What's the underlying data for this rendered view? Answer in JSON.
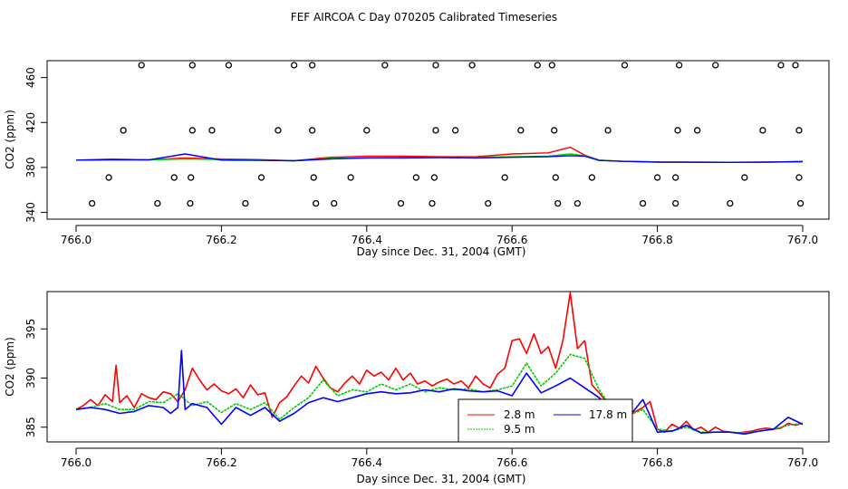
{
  "title": "FEF AIRCOA C  Day 070205  Calibrated Timeseries",
  "colors": {
    "red": "#ff0000",
    "green": "#00cc00",
    "blue": "#0000ff",
    "axis": "#000000"
  },
  "chart_data": [
    {
      "type": "scatter+line",
      "xlabel": "Day since Dec. 31, 2004 (GMT)",
      "ylabel": "CO2 (ppm)",
      "xlim": [
        766.0,
        767.0
      ],
      "ylim": [
        334,
        475
      ],
      "xticks": [
        766.0,
        766.2,
        766.4,
        766.6,
        766.8,
        767.0
      ],
      "xtick_labels": [
        "766.0",
        "766.2",
        "766.4",
        "766.6",
        "766.8",
        "767.0"
      ],
      "yticks": [
        340,
        380,
        420,
        460
      ],
      "ytick_labels": [
        "340",
        "380",
        "420",
        "460"
      ],
      "points_x": [
        766.09,
        766.16,
        766.21,
        766.3,
        766.325,
        766.425,
        766.495,
        766.545,
        766.635,
        766.655,
        766.755,
        766.83,
        766.88,
        766.97,
        766.99,
        766.065,
        766.16,
        766.187,
        766.278,
        766.325,
        766.4,
        766.495,
        766.522,
        766.612,
        766.658,
        766.732,
        766.828,
        766.855,
        766.945,
        766.995,
        766.045,
        766.135,
        766.158,
        766.255,
        766.327,
        766.378,
        766.468,
        766.493,
        766.59,
        766.66,
        766.71,
        766.8,
        766.825,
        766.92,
        766.995,
        766.022,
        766.112,
        766.157,
        766.233,
        766.33,
        766.355,
        766.447,
        766.49,
        766.567,
        766.663,
        766.69,
        766.78,
        766.825,
        766.9,
        766.997
      ],
      "points_y": [
        471,
        471,
        471,
        471,
        471,
        471,
        471,
        471,
        471,
        471,
        471,
        471,
        471,
        471,
        471,
        413,
        413,
        413,
        413,
        413,
        413,
        413,
        413,
        413,
        413,
        413,
        413,
        413,
        413,
        413,
        371,
        371,
        371,
        371,
        371,
        371,
        371,
        371,
        371,
        371,
        371,
        371,
        371,
        371,
        371,
        348,
        348,
        348,
        348,
        348,
        348,
        348,
        348,
        348,
        348,
        348,
        348,
        348,
        348,
        348
      ],
      "series": [
        {
          "name": "2.8 m",
          "color": "#ff0000",
          "x": [
            766.0,
            766.05,
            766.1,
            766.15,
            766.2,
            766.25,
            766.3,
            766.35,
            766.4,
            766.45,
            766.5,
            766.55,
            766.6,
            766.65,
            766.68,
            766.7,
            766.72,
            766.75,
            766.8,
            766.85,
            766.9,
            766.95,
            767.0
          ],
          "y": [
            386.5,
            387.5,
            386.8,
            388.5,
            387.5,
            387,
            386,
            389,
            390,
            390,
            389.5,
            389.5,
            392,
            393,
            398,
            391,
            386.5,
            385.5,
            385,
            384.8,
            384.6,
            384.8,
            385.3
          ]
        },
        {
          "name": "9.5 m",
          "color": "#00cc00",
          "x": [
            766.0,
            766.05,
            766.1,
            766.15,
            766.2,
            766.25,
            766.3,
            766.35,
            766.4,
            766.45,
            766.5,
            766.55,
            766.6,
            766.65,
            766.68,
            766.7,
            766.72,
            766.75,
            766.8,
            766.85,
            766.9,
            766.95,
            767.0
          ],
          "y": [
            386.5,
            387,
            386.8,
            387.5,
            387,
            386.5,
            386,
            388,
            388.5,
            389,
            389,
            389,
            389.5,
            390,
            392,
            390.5,
            386.5,
            385.5,
            384.8,
            384.7,
            384.6,
            384.7,
            385.2
          ]
        },
        {
          "name": "17.8 m",
          "color": "#0000ff",
          "x": [
            766.0,
            766.05,
            766.1,
            766.15,
            766.2,
            766.25,
            766.3,
            766.35,
            766.4,
            766.45,
            766.5,
            766.55,
            766.6,
            766.65,
            766.68,
            766.7,
            766.72,
            766.75,
            766.8,
            766.85,
            766.9,
            766.95,
            767.0
          ],
          "y": [
            386.5,
            386.8,
            386.7,
            392,
            386.5,
            386.3,
            386,
            387.5,
            388.5,
            388.5,
            388.8,
            388.5,
            389,
            389.5,
            390.5,
            390,
            386.2,
            385.5,
            384.7,
            384.6,
            384.5,
            384.7,
            385.2
          ]
        }
      ]
    },
    {
      "type": "line",
      "xlabel": "Day since Dec. 31, 2004 (GMT)",
      "ylabel": "CO2 (ppm)",
      "xlim": [
        766.0,
        767.0
      ],
      "ylim": [
        383.5,
        398.8
      ],
      "xticks": [
        766.0,
        766.2,
        766.4,
        766.6,
        766.8,
        767.0
      ],
      "xtick_labels": [
        "766.0",
        "766.2",
        "766.4",
        "766.6",
        "766.8",
        "767.0"
      ],
      "yticks": [
        385,
        390,
        395
      ],
      "ytick_labels": [
        "385",
        "390",
        "395"
      ],
      "legend": {
        "position": "bottom-right",
        "entries": [
          "2.8 m",
          "9.5 m",
          "17.8 m"
        ]
      },
      "series": [
        {
          "name": "2.8 m",
          "color": "#ff0000",
          "x": [
            766.0,
            766.01,
            766.02,
            766.03,
            766.04,
            766.05,
            766.055,
            766.06,
            766.07,
            766.08,
            766.09,
            766.1,
            766.11,
            766.12,
            766.13,
            766.14,
            766.15,
            766.16,
            766.17,
            766.18,
            766.19,
            766.2,
            766.21,
            766.22,
            766.23,
            766.24,
            766.25,
            766.26,
            766.27,
            766.28,
            766.29,
            766.3,
            766.31,
            766.32,
            766.33,
            766.34,
            766.35,
            766.36,
            766.37,
            766.38,
            766.39,
            766.4,
            766.41,
            766.42,
            766.43,
            766.44,
            766.45,
            766.46,
            766.47,
            766.48,
            766.49,
            766.5,
            766.51,
            766.52,
            766.53,
            766.54,
            766.55,
            766.56,
            766.57,
            766.58,
            766.59,
            766.6,
            766.61,
            766.62,
            766.63,
            766.64,
            766.65,
            766.66,
            766.67,
            766.68,
            766.69,
            766.7,
            766.71,
            766.72,
            766.73,
            766.74,
            766.75,
            766.76,
            766.77,
            766.78,
            766.79,
            766.8,
            766.81,
            766.82,
            766.83,
            766.84,
            766.85,
            766.86,
            766.87,
            766.88,
            766.89,
            766.9,
            766.91,
            766.92,
            766.93,
            766.94,
            766.95,
            766.96,
            766.97,
            766.98,
            766.99,
            767.0
          ],
          "y": [
            386.8,
            387.2,
            387.8,
            387.2,
            388.3,
            387.6,
            391.3,
            387.5,
            388.2,
            387.0,
            388.4,
            388.0,
            387.8,
            388.6,
            388.4,
            387.6,
            388.8,
            391.0,
            389.8,
            388.8,
            389.4,
            388.7,
            388.4,
            388.9,
            388.0,
            389.3,
            388.3,
            388.5,
            386.0,
            387.5,
            388.1,
            389.2,
            390.2,
            389.5,
            391.2,
            390.0,
            389.0,
            388.6,
            389.5,
            390.2,
            389.4,
            390.8,
            390.2,
            390.6,
            389.8,
            391.0,
            389.8,
            390.5,
            389.4,
            389.7,
            389.2,
            389.6,
            389.9,
            389.4,
            389.7,
            389.0,
            390.2,
            389.4,
            389.0,
            390.4,
            391.0,
            393.8,
            394.0,
            392.5,
            394.5,
            392.5,
            393.2,
            391.0,
            393.8,
            398.7,
            393.0,
            393.8,
            389.3,
            388.5,
            387.6,
            386.8,
            386.5,
            386.1,
            386.6,
            387.0,
            387.6,
            384.8,
            384.5,
            385.3,
            384.9,
            385.6,
            384.7,
            385.0,
            384.5,
            385.0,
            384.6,
            384.5,
            384.4,
            384.5,
            384.6,
            384.8,
            384.9,
            384.8,
            384.9,
            385.4,
            385.2,
            385.4
          ]
        },
        {
          "name": "9.5 m",
          "color": "#00cc00",
          "x": [
            766.0,
            766.02,
            766.04,
            766.06,
            766.08,
            766.1,
            766.12,
            766.14,
            766.16,
            766.18,
            766.2,
            766.22,
            766.24,
            766.26,
            766.28,
            766.3,
            766.32,
            766.34,
            766.36,
            766.38,
            766.4,
            766.42,
            766.44,
            766.46,
            766.48,
            766.5,
            766.52,
            766.54,
            766.56,
            766.58,
            766.6,
            766.62,
            766.64,
            766.66,
            766.68,
            766.7,
            766.72,
            766.74,
            766.76,
            766.78,
            766.8,
            766.82,
            766.84,
            766.86,
            766.88,
            766.9,
            766.92,
            766.94,
            766.96,
            766.98,
            767.0
          ],
          "y": [
            386.8,
            387.0,
            387.4,
            386.8,
            386.8,
            387.6,
            387.5,
            388.4,
            387.2,
            387.6,
            386.5,
            387.4,
            386.8,
            387.5,
            385.8,
            387.0,
            388.0,
            389.8,
            388.2,
            388.8,
            388.6,
            389.4,
            388.8,
            389.4,
            388.6,
            389.0,
            388.8,
            388.9,
            388.6,
            388.8,
            389.2,
            391.5,
            389.2,
            390.5,
            392.4,
            392.0,
            388.8,
            386.6,
            386.2,
            386.8,
            384.8,
            384.6,
            385.0,
            384.5,
            384.5,
            384.5,
            384.4,
            384.6,
            384.8,
            385.2,
            385.4
          ]
        },
        {
          "name": "17.8 m",
          "color": "#0000ff",
          "x": [
            766.0,
            766.02,
            766.04,
            766.06,
            766.08,
            766.1,
            766.12,
            766.13,
            766.14,
            766.145,
            766.15,
            766.16,
            766.18,
            766.2,
            766.22,
            766.24,
            766.26,
            766.28,
            766.3,
            766.32,
            766.34,
            766.36,
            766.38,
            766.4,
            766.42,
            766.44,
            766.46,
            766.48,
            766.5,
            766.52,
            766.54,
            766.56,
            766.58,
            766.6,
            766.62,
            766.64,
            766.66,
            766.68,
            766.7,
            766.72,
            766.74,
            766.76,
            766.78,
            766.8,
            766.82,
            766.84,
            766.86,
            766.88,
            766.9,
            766.92,
            766.94,
            766.96,
            766.98,
            767.0
          ],
          "y": [
            386.8,
            387.0,
            386.8,
            386.4,
            386.6,
            387.2,
            387.0,
            386.4,
            387.0,
            392.8,
            386.8,
            387.4,
            387.0,
            385.3,
            387.0,
            386.2,
            387.0,
            385.6,
            386.4,
            387.5,
            388.0,
            387.6,
            388.0,
            388.4,
            388.6,
            388.4,
            388.5,
            388.8,
            388.6,
            388.9,
            388.7,
            388.6,
            388.7,
            388.2,
            390.5,
            388.5,
            389.2,
            390.0,
            389.0,
            388.0,
            386.4,
            386.0,
            387.8,
            384.5,
            384.6,
            385.2,
            384.4,
            384.5,
            384.5,
            384.3,
            384.6,
            384.8,
            386.0,
            385.3
          ]
        }
      ]
    }
  ]
}
